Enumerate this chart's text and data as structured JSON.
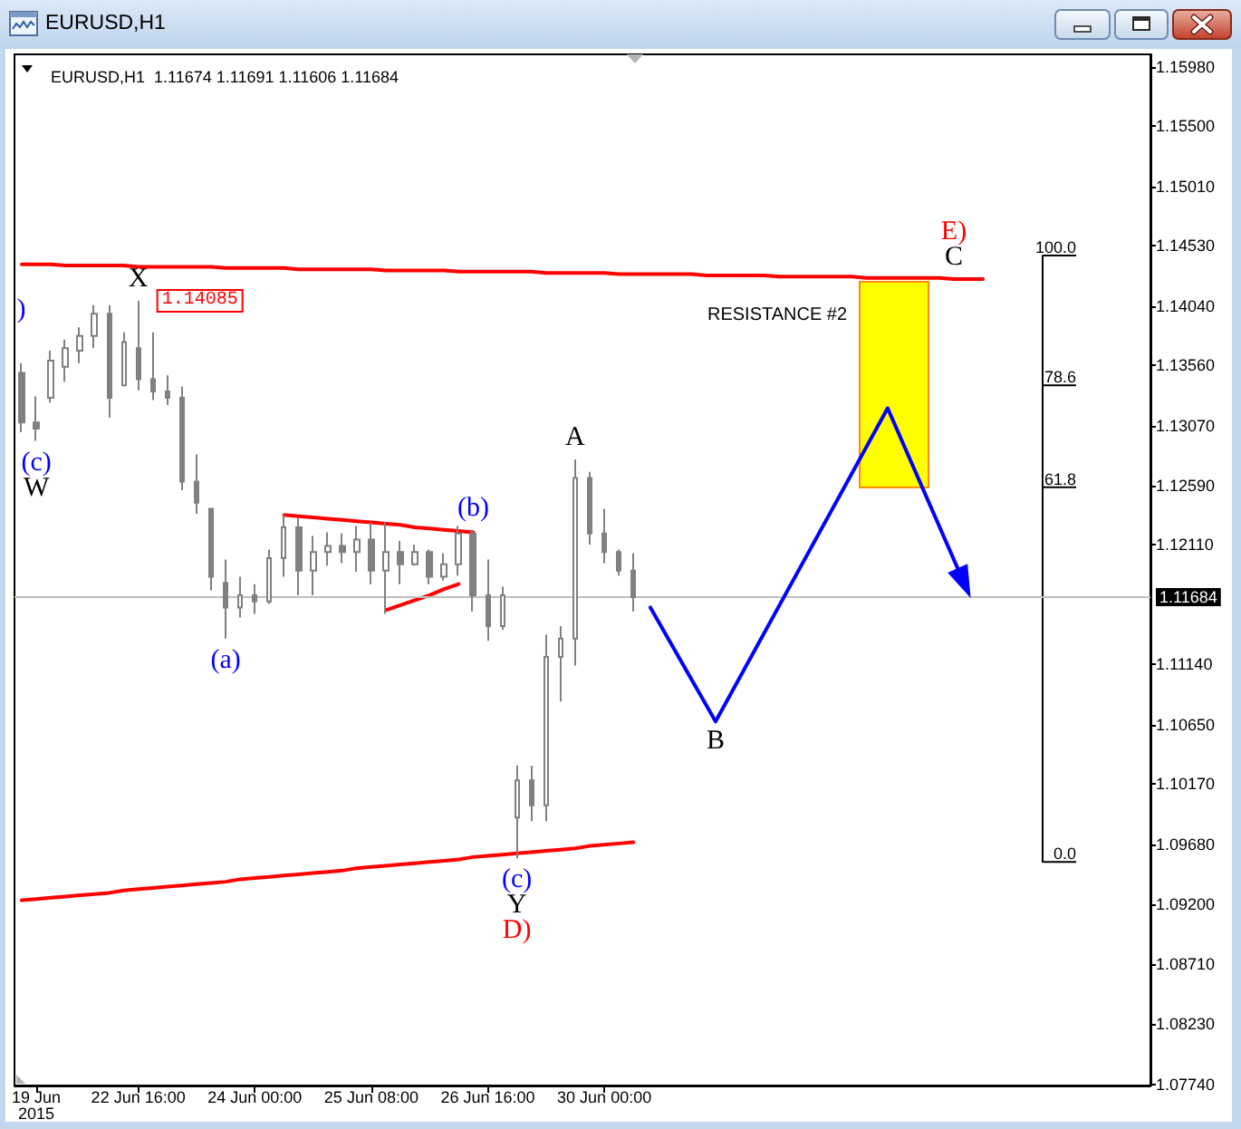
{
  "chart_data": {
    "type": "candlestick",
    "title": "EURUSD,H1",
    "subtitle": "EURUSD,H1  1.11674 1.11691 1.11606 1.11684",
    "categories": [
      null,
      "19 Jun 2015",
      null,
      null,
      null,
      null,
      null,
      null,
      "22 Jun 16:00",
      null,
      null,
      null,
      null,
      null,
      null,
      null,
      "24 Jun 00:00",
      null,
      null,
      null,
      null,
      null,
      null,
      null,
      "25 Jun 08:00",
      null,
      null,
      null,
      null,
      null,
      null,
      null,
      "26 Jun 16:00",
      null,
      null,
      null,
      null,
      null,
      null,
      null,
      "30 Jun 00:00",
      null,
      null,
      null,
      null,
      null,
      null,
      null,
      null,
      null,
      null,
      null,
      null,
      null,
      null,
      null,
      null,
      null,
      null,
      null,
      null,
      null,
      null,
      null,
      null,
      null,
      null,
      null,
      null,
      null,
      null,
      null,
      null,
      null,
      null,
      null,
      null,
      null
    ],
    "ylim": [
      1.0773,
      1.1608
    ],
    "yticks": [
      {
        "value": 1.1598,
        "label": "1.15980"
      },
      {
        "value": 1.155,
        "label": "1.15500"
      },
      {
        "value": 1.1501,
        "label": "1.15010"
      },
      {
        "value": 1.1453,
        "label": "1.14530"
      },
      {
        "value": 1.1404,
        "label": "1.14040"
      },
      {
        "value": 1.1356,
        "label": "1.13560"
      },
      {
        "value": 1.1307,
        "label": "1.13070"
      },
      {
        "value": 1.1259,
        "label": "1.12590"
      },
      {
        "value": 1.1211,
        "label": "1.12110"
      },
      {
        "value": 1.1114,
        "label": "1.11140"
      },
      {
        "value": 1.1065,
        "label": "1.10650"
      },
      {
        "value": 1.1017,
        "label": "1.10170"
      },
      {
        "value": 1.0968,
        "label": "1.09680"
      },
      {
        "value": 1.092,
        "label": "1.09200"
      },
      {
        "value": 1.0871,
        "label": "1.08710"
      },
      {
        "value": 1.0823,
        "label": "1.08230"
      },
      {
        "value": 1.0774,
        "label": "1.07740"
      }
    ],
    "y2lim": [
      -36.9,
      133.2
    ],
    "y2ticks": [
      {
        "value": 0,
        "label": "0.0"
      },
      61.8,
      78.6,
      {
        "value": 100,
        "label": "100.0"
      }
    ],
    "marker": "none",
    "series": [
      {
        "color": "#808080",
        "ohlc": [
          [
            1.135,
            1.1358,
            1.1302,
            1.131
          ],
          [
            1.131,
            1.1331,
            1.1295,
            1.1305
          ],
          [
            1.133,
            1.1368,
            1.1326,
            1.136
          ],
          [
            1.1355,
            1.1377,
            1.1343,
            1.137
          ],
          [
            1.1368,
            1.1387,
            1.1358,
            1.138
          ],
          [
            1.138,
            1.1405,
            1.137,
            1.1398
          ],
          [
            1.1398,
            1.1405,
            1.1314,
            1.133
          ],
          [
            1.134,
            1.1383,
            1.1339,
            1.1375
          ],
          [
            1.137,
            1.14085,
            1.1336,
            1.1345
          ],
          [
            1.1345,
            1.1383,
            1.1328,
            1.1335
          ],
          [
            1.1335,
            1.1348,
            1.1324,
            1.133
          ],
          [
            1.133,
            1.1339,
            1.1255,
            1.1262
          ],
          [
            1.1262,
            1.1284,
            1.1236,
            1.1245
          ],
          [
            1.124,
            1.124,
            1.1174,
            1.1185
          ],
          [
            1.118,
            1.1199,
            1.1135,
            1.116
          ],
          [
            1.116,
            1.1185,
            1.1152,
            1.117
          ],
          [
            1.117,
            1.1179,
            1.1155,
            1.1165
          ],
          [
            1.1165,
            1.1207,
            1.1163,
            1.12
          ],
          [
            1.12,
            1.1236,
            1.1185,
            1.1225
          ],
          [
            1.1225,
            1.1233,
            1.117,
            1.119
          ],
          [
            1.119,
            1.1218,
            1.117,
            1.1205
          ],
          [
            1.1205,
            1.1221,
            1.1194,
            1.121
          ],
          [
            1.121,
            1.122,
            1.1196,
            1.1205
          ],
          [
            1.1205,
            1.1226,
            1.1189,
            1.1215
          ],
          [
            1.1215,
            1.1229,
            1.1179,
            1.119
          ],
          [
            1.119,
            1.1229,
            1.1155,
            1.1205
          ],
          [
            1.1205,
            1.1214,
            1.1179,
            1.1195
          ],
          [
            1.1195,
            1.1211,
            1.1194,
            1.1205
          ],
          [
            1.1205,
            1.1207,
            1.1179,
            1.1185
          ],
          [
            1.1185,
            1.1204,
            1.1182,
            1.1195
          ],
          [
            1.1195,
            1.1226,
            1.1186,
            1.122
          ],
          [
            1.122,
            1.1223,
            1.1157,
            1.117
          ],
          [
            1.117,
            1.1199,
            1.1133,
            1.1145
          ],
          [
            1.1145,
            1.1177,
            1.1142,
            1.117
          ],
          [
            1.099,
            1.1032,
            1.0957,
            1.102
          ],
          [
            1.102,
            1.1032,
            1.0987,
            1.1
          ],
          [
            1.1,
            1.1138,
            1.0987,
            1.112
          ],
          [
            1.112,
            1.1145,
            1.1084,
            1.1135
          ],
          [
            1.1135,
            1.128,
            1.1113,
            1.1265
          ],
          [
            1.1265,
            1.127,
            1.1211,
            1.122
          ],
          [
            1.122,
            1.124,
            1.1196,
            1.1205
          ],
          [
            1.1205,
            1.1207,
            1.1186,
            1.119
          ],
          [
            1.119,
            1.1204,
            1.1157,
            1.11684
          ],
          null,
          null,
          null,
          null,
          null,
          null,
          null,
          null,
          null,
          null,
          null,
          null,
          null,
          null,
          null,
          null,
          null,
          null,
          null,
          null,
          null,
          null,
          null,
          null,
          null,
          null,
          null,
          null,
          null,
          null,
          null,
          null,
          null,
          null,
          null
        ],
        "value_labels": [
          null,
          null,
          null,
          null,
          null,
          null,
          null,
          null,
          "1.14085",
          null,
          null,
          null,
          null,
          null,
          null,
          null,
          null,
          null,
          null,
          null,
          null,
          null,
          null,
          null,
          null,
          null,
          null,
          null,
          null,
          null,
          null,
          null,
          null,
          null,
          null,
          null,
          null,
          null,
          null,
          null,
          null,
          null,
          null,
          null,
          null,
          null,
          null,
          null,
          null,
          null,
          null,
          null,
          null,
          null,
          null,
          null,
          null,
          null,
          null,
          null,
          null,
          null,
          null,
          null,
          null,
          null,
          null,
          null,
          null,
          null,
          null,
          null,
          null,
          null,
          null,
          null,
          null,
          null
        ]
      },
      {
        "type": "line",
        "color": "#ff0000",
        "values": [
          1.1438,
          1.1438,
          1.1438,
          1.1437,
          1.1437,
          1.1437,
          1.1437,
          1.1437,
          1.1436,
          1.1436,
          1.1436,
          1.1436,
          1.1436,
          1.1436,
          1.1435,
          1.1435,
          1.1435,
          1.1435,
          1.1435,
          1.1434,
          1.1434,
          1.1434,
          1.1434,
          1.1434,
          1.1434,
          1.1433,
          1.1433,
          1.1433,
          1.1433,
          1.1433,
          1.1432,
          1.1432,
          1.1432,
          1.1432,
          1.1432,
          1.1432,
          1.1431,
          1.1431,
          1.1431,
          1.1431,
          1.1431,
          1.143,
          1.143,
          1.143,
          1.143,
          1.143,
          1.143,
          1.1429,
          1.1429,
          1.1429,
          1.1429,
          1.1429,
          1.1428,
          1.1428,
          1.1428,
          1.1428,
          1.1428,
          1.1428,
          1.1427,
          1.1427,
          1.1427,
          1.1427,
          1.1427,
          1.1427,
          1.1426,
          1.1426,
          1.1426,
          null,
          null,
          null,
          null,
          null,
          null,
          null,
          null,
          null,
          null,
          null
        ]
      },
      {
        "type": "line",
        "color": "#ff0000",
        "values": [
          1.0923,
          1.0924,
          1.0925,
          1.0926,
          1.0927,
          1.0928,
          1.0929,
          1.0931,
          1.0932,
          1.0933,
          1.0934,
          1.0935,
          1.0936,
          1.0937,
          1.0938,
          1.094,
          1.0941,
          1.0942,
          1.0943,
          1.0944,
          1.0945,
          1.0946,
          1.0947,
          1.0949,
          1.095,
          1.0951,
          1.0952,
          1.0953,
          1.0954,
          1.0955,
          1.0956,
          1.0958,
          1.0959,
          1.096,
          1.0961,
          1.0962,
          1.0963,
          1.0964,
          1.0965,
          1.0967,
          1.0968,
          1.0969,
          1.097,
          null,
          null,
          null,
          null,
          null,
          null,
          null,
          null,
          null,
          null,
          null,
          null,
          null,
          null,
          null,
          null,
          null,
          null,
          null,
          null,
          null,
          null,
          null,
          null,
          null,
          null,
          null,
          null,
          null,
          null,
          null,
          null,
          null,
          null,
          null
        ]
      },
      {
        "type": "line",
        "color": "#ff0000",
        "values": [
          null,
          null,
          null,
          null,
          null,
          null,
          null,
          null,
          null,
          null,
          null,
          null,
          null,
          null,
          null,
          null,
          null,
          null,
          1.1235,
          1.1234,
          1.1233,
          1.1232,
          1.1231,
          1.123,
          1.1229,
          1.1228,
          1.1227,
          1.1225,
          1.1224,
          1.1223,
          1.1222,
          1.1221,
          null,
          null,
          null,
          null,
          null,
          null,
          null,
          null,
          null,
          null,
          null,
          null,
          null,
          null,
          null,
          null,
          null,
          null,
          null,
          null,
          null,
          null,
          null,
          null,
          null,
          null,
          null,
          null,
          null,
          null,
          null,
          null,
          null,
          null,
          null,
          null,
          null,
          null,
          null,
          null,
          null,
          null,
          null,
          null,
          null,
          null
        ]
      },
      {
        "type": "line",
        "color": "#ff0000",
        "values": [
          null,
          null,
          null,
          null,
          null,
          null,
          null,
          null,
          null,
          null,
          null,
          null,
          null,
          null,
          null,
          null,
          null,
          null,
          null,
          null,
          null,
          null,
          null,
          null,
          null,
          1.1158,
          1.1162,
          1.1166,
          1.117,
          1.1175,
          1.1179,
          null,
          null,
          null,
          null,
          null,
          null,
          null,
          null,
          null,
          null,
          null,
          null,
          null,
          null,
          null,
          null,
          null,
          null,
          null,
          null,
          null,
          null,
          null,
          null,
          null,
          null,
          null,
          null,
          null,
          null,
          null,
          null,
          null,
          null,
          null,
          null,
          null,
          null,
          null,
          null,
          null,
          null,
          null,
          null,
          null,
          null,
          null
        ]
      }
    ],
    "ref_lines": [
      {
        "axis": "y",
        "value": 1.11684,
        "label": "1.11684",
        "color": "#c0c0c0"
      }
    ],
    "annotations": [
      ")",
      {
        "text": "(c)",
        "y": 1.1295
      },
      {
        "text": "W",
        "y": 1.1295
      },
      {
        "text": "X",
        "y": 1.14085
      },
      {
        "text": "(a)",
        "y": 1.1135
      },
      {
        "text": "(b)",
        "y": 1.1223
      },
      {
        "text": "(c)",
        "y": 1.0957
      },
      {
        "text": "Y",
        "y": 1.0957
      },
      {
        "text": "D)",
        "y": 1.0957
      },
      {
        "text": "A",
        "y": 1.128
      },
      "B",
      {
        "text": "C",
        "y": 1.1426
      },
      {
        "text": "E)",
        "y": 1.1426
      },
      "RESISTANCE #2"
    ]
  }
}
